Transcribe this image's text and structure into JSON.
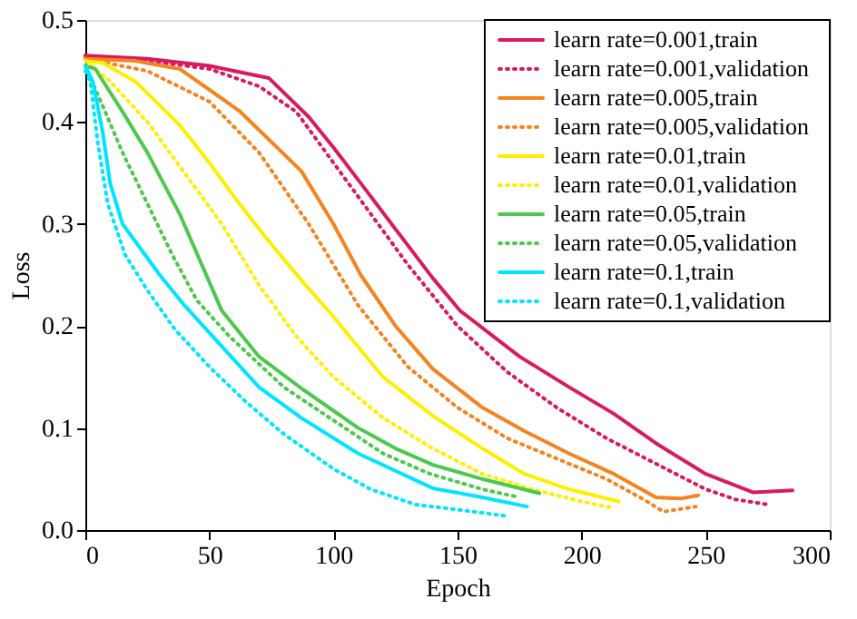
{
  "chart_data": {
    "type": "line",
    "xlabel": "Epoch",
    "ylabel": "Loss",
    "xlim": [
      0,
      300
    ],
    "ylim": [
      0,
      0.5
    ],
    "xticks": [
      0,
      50,
      100,
      150,
      200,
      250,
      300
    ],
    "yticks": [
      {
        "value": 0,
        "label": "0.0"
      },
      0.1,
      0.2,
      0.3,
      0.4,
      0.5
    ],
    "grid": false,
    "legend": "top right",
    "marker": "none",
    "series": [
      {
        "name": "learn rate=0.001,train",
        "color": "#d81b60",
        "line_style": "solid",
        "x": [
          0,
          25,
          50,
          74,
          90,
          100,
          111,
          125,
          140,
          151,
          175,
          195,
          213,
          230,
          250,
          269,
          285
        ],
        "values": [
          0.465,
          0.462,
          0.455,
          0.443,
          0.405,
          0.375,
          0.34,
          0.295,
          0.247,
          0.215,
          0.17,
          0.14,
          0.114,
          0.085,
          0.055,
          0.037,
          0.039
        ]
      },
      {
        "name": "learn rate=0.001,validation",
        "color": "#d81b60",
        "line_style": "dotted",
        "x": [
          0,
          25,
          50,
          70,
          85,
          100,
          115,
          130,
          150,
          170,
          190,
          210,
          230,
          250,
          262,
          275
        ],
        "values": [
          0.465,
          0.46,
          0.452,
          0.435,
          0.41,
          0.36,
          0.31,
          0.26,
          0.2,
          0.155,
          0.12,
          0.09,
          0.065,
          0.04,
          0.03,
          0.025
        ]
      },
      {
        "name": "learn rate=0.005,train",
        "color": "#f5831f",
        "line_style": "solid",
        "x": [
          0,
          20,
          38,
          62,
          87,
          100,
          111,
          125,
          140,
          160,
          177,
          195,
          213,
          230,
          240,
          247
        ],
        "values": [
          0.462,
          0.46,
          0.452,
          0.411,
          0.352,
          0.3,
          0.25,
          0.2,
          0.158,
          0.12,
          0.097,
          0.075,
          0.055,
          0.032,
          0.031,
          0.034
        ]
      },
      {
        "name": "learn rate=0.005,validation",
        "color": "#f5831f",
        "line_style": "dotted",
        "x": [
          0,
          25,
          50,
          70,
          90,
          110,
          130,
          150,
          170,
          190,
          210,
          225,
          233,
          246
        ],
        "values": [
          0.462,
          0.45,
          0.42,
          0.37,
          0.3,
          0.22,
          0.16,
          0.12,
          0.09,
          0.07,
          0.05,
          0.03,
          0.018,
          0.023
        ]
      },
      {
        "name": "learn rate=0.01,train",
        "color": "#ffee00",
        "line_style": "solid",
        "x": [
          0,
          7,
          20,
          38,
          50,
          62,
          75,
          87,
          99,
          120,
          140,
          160,
          177,
          195,
          215
        ],
        "values": [
          0.46,
          0.458,
          0.44,
          0.397,
          0.36,
          0.32,
          0.28,
          0.245,
          0.212,
          0.15,
          0.112,
          0.08,
          0.055,
          0.04,
          0.028
        ]
      },
      {
        "name": "learn rate=0.01,validation",
        "color": "#ffee00",
        "line_style": "dotted",
        "x": [
          0,
          10,
          25,
          40,
          55,
          70,
          85,
          100,
          120,
          140,
          160,
          180,
          200,
          212
        ],
        "values": [
          0.46,
          0.44,
          0.4,
          0.35,
          0.3,
          0.24,
          0.19,
          0.15,
          0.11,
          0.08,
          0.055,
          0.04,
          0.028,
          0.022
        ]
      },
      {
        "name": "learn rate=0.05,train",
        "color": "#4cc94c",
        "line_style": "solid",
        "x": [
          0,
          4,
          15,
          25,
          38,
          55,
          70,
          87,
          110,
          125,
          140,
          160,
          183
        ],
        "values": [
          0.455,
          0.452,
          0.41,
          0.37,
          0.31,
          0.215,
          0.17,
          0.139,
          0.1,
          0.08,
          0.064,
          0.05,
          0.036
        ]
      },
      {
        "name": "learn rate=0.05,validation",
        "color": "#4cc94c",
        "line_style": "dotted",
        "x": [
          0,
          8,
          15,
          25,
          35,
          45,
          58,
          80,
          96,
          120,
          139,
          160,
          175
        ],
        "values": [
          0.455,
          0.41,
          0.37,
          0.32,
          0.27,
          0.225,
          0.19,
          0.14,
          0.114,
          0.075,
          0.055,
          0.04,
          0.032
        ]
      },
      {
        "name": "learn rate=0.1,train",
        "color": "#00e5ff",
        "line_style": "solid",
        "x": [
          0,
          3,
          7,
          10,
          15,
          21,
          30,
          40,
          55,
          70,
          87,
          110,
          125,
          140,
          160,
          178
        ],
        "values": [
          0.455,
          0.44,
          0.39,
          0.34,
          0.3,
          0.28,
          0.25,
          0.22,
          0.18,
          0.14,
          0.11,
          0.075,
          0.058,
          0.041,
          0.032,
          0.023
        ]
      },
      {
        "name": "learn rate=0.1,validation",
        "color": "#00e5ff",
        "line_style": "dotted",
        "x": [
          0,
          2,
          5,
          9,
          16,
          25,
          36,
          50,
          65,
          80,
          100,
          115,
          133,
          150,
          169
        ],
        "values": [
          0.45,
          0.44,
          0.38,
          0.32,
          0.27,
          0.235,
          0.197,
          0.16,
          0.125,
          0.094,
          0.06,
          0.04,
          0.025,
          0.02,
          0.014
        ]
      }
    ]
  }
}
